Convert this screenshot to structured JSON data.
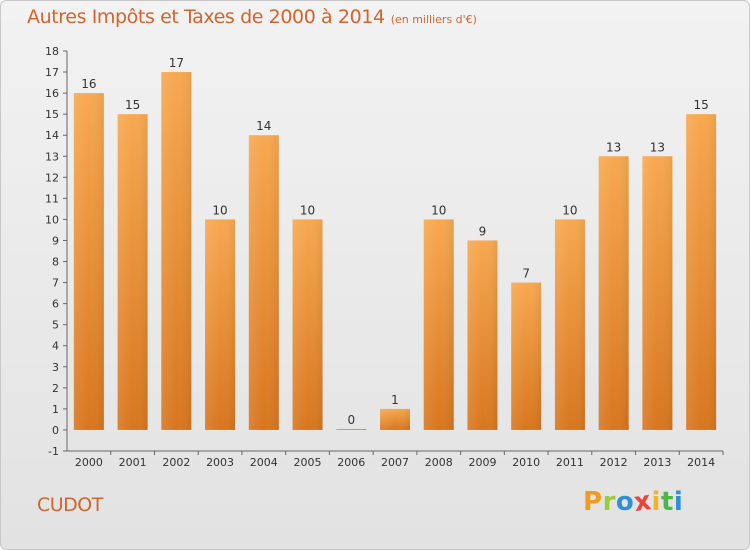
{
  "title": "Autres Impôts et Taxes de 2000 à 2014",
  "subtitle": "(en milliers d'€)",
  "place": "CUDOT",
  "logo": {
    "letters": [
      "P",
      "r",
      "o",
      "x",
      "i",
      "t",
      "i"
    ],
    "colors": [
      "#f39a1e",
      "#9ccb3b",
      "#2e8ed9",
      "#e8463c",
      "#f0b42a",
      "#4fb548",
      "#2e8ed9"
    ]
  },
  "colors": {
    "bar_light": "#f7a850",
    "bar_dark": "#d8761f",
    "accent": "#d5642a"
  },
  "chart_data": {
    "type": "bar",
    "title": "Autres Impôts et Taxes de 2000 à 2014",
    "subtitle": "(en milliers d'€)",
    "categories": [
      "2000",
      "2001",
      "2002",
      "2003",
      "2004",
      "2005",
      "2006",
      "2007",
      "2008",
      "2009",
      "2010",
      "2011",
      "2012",
      "2013",
      "2014"
    ],
    "values": [
      16,
      15,
      17,
      10,
      14,
      10,
      0,
      1,
      10,
      9,
      7,
      10,
      13,
      13,
      15
    ],
    "ylim": [
      -1,
      18
    ],
    "yticks": [
      -1,
      0,
      1,
      2,
      3,
      4,
      5,
      6,
      7,
      8,
      9,
      10,
      11,
      12,
      13,
      14,
      15,
      16,
      17,
      18
    ],
    "grid": false,
    "legend": "none"
  }
}
